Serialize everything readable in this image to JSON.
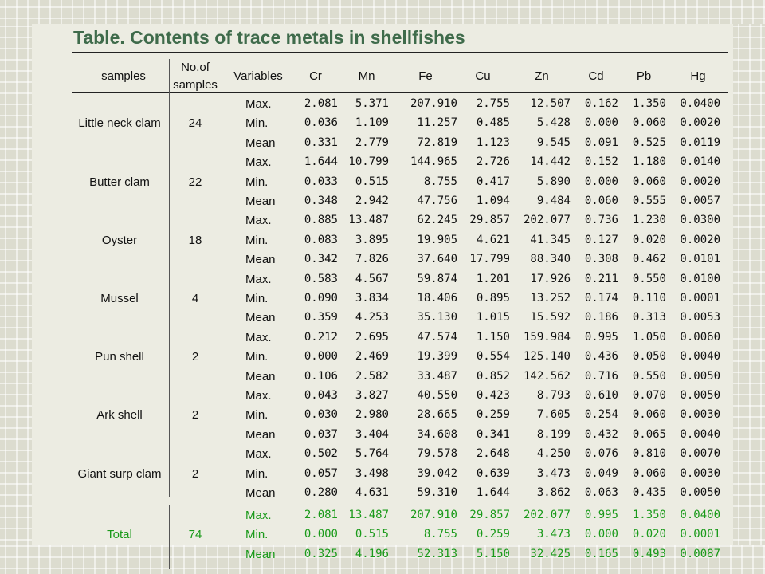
{
  "title": "Table. Contents of trace metals in shellfishes",
  "headers": {
    "samples": "samples",
    "no_of_samples_line1": "No.of",
    "no_of_samples_line2": "samples",
    "variables": "Variables",
    "metals": [
      "Cr",
      "Mn",
      "Fe",
      "Cu",
      "Zn",
      "Cd",
      "Pb",
      "Hg"
    ]
  },
  "groups": [
    {
      "name": "Little neck clam",
      "n": "24",
      "rows": [
        {
          "var": "Max.",
          "vals": [
            "2.081",
            "5.371",
            "207.910",
            "2.755",
            "12.507",
            "0.162",
            "1.350",
            "0.0400"
          ]
        },
        {
          "var": "Min.",
          "vals": [
            "0.036",
            "1.109",
            "11.257",
            "0.485",
            "5.428",
            "0.000",
            "0.060",
            "0.0020"
          ]
        },
        {
          "var": "Mean",
          "vals": [
            "0.331",
            "2.779",
            "72.819",
            "1.123",
            "9.545",
            "0.091",
            "0.525",
            "0.0119"
          ]
        }
      ]
    },
    {
      "name": "Butter clam",
      "n": "22",
      "rows": [
        {
          "var": "Max.",
          "vals": [
            "1.644",
            "10.799",
            "144.965",
            "2.726",
            "14.442",
            "0.152",
            "1.180",
            "0.0140"
          ]
        },
        {
          "var": "Min.",
          "vals": [
            "0.033",
            "0.515",
            "8.755",
            "0.417",
            "5.890",
            "0.000",
            "0.060",
            "0.0020"
          ]
        },
        {
          "var": "Mean",
          "vals": [
            "0.348",
            "2.942",
            "47.756",
            "1.094",
            "9.484",
            "0.060",
            "0.555",
            "0.0057"
          ]
        }
      ]
    },
    {
      "name": "Oyster",
      "n": "18",
      "rows": [
        {
          "var": "Max.",
          "vals": [
            "0.885",
            "13.487",
            "62.245",
            "29.857",
            "202.077",
            "0.736",
            "1.230",
            "0.0300"
          ]
        },
        {
          "var": "Min.",
          "vals": [
            "0.083",
            "3.895",
            "19.905",
            "4.621",
            "41.345",
            "0.127",
            "0.020",
            "0.0020"
          ]
        },
        {
          "var": "Mean",
          "vals": [
            "0.342",
            "7.826",
            "37.640",
            "17.799",
            "88.340",
            "0.308",
            "0.462",
            "0.0101"
          ]
        }
      ]
    },
    {
      "name": "Mussel",
      "n": "4",
      "rows": [
        {
          "var": "Max.",
          "vals": [
            "0.583",
            "4.567",
            "59.874",
            "1.201",
            "17.926",
            "0.211",
            "0.550",
            "0.0100"
          ]
        },
        {
          "var": "Min.",
          "vals": [
            "0.090",
            "3.834",
            "18.406",
            "0.895",
            "13.252",
            "0.174",
            "0.110",
            "0.0001"
          ]
        },
        {
          "var": "Mean",
          "vals": [
            "0.359",
            "4.253",
            "35.130",
            "1.015",
            "15.592",
            "0.186",
            "0.313",
            "0.0053"
          ]
        }
      ]
    },
    {
      "name": "Pun shell",
      "n": "2",
      "rows": [
        {
          "var": "Max.",
          "vals": [
            "0.212",
            "2.695",
            "47.574",
            "1.150",
            "159.984",
            "0.995",
            "1.050",
            "0.0060"
          ]
        },
        {
          "var": "Min.",
          "vals": [
            "0.000",
            "2.469",
            "19.399",
            "0.554",
            "125.140",
            "0.436",
            "0.050",
            "0.0040"
          ]
        },
        {
          "var": "Mean",
          "vals": [
            "0.106",
            "2.582",
            "33.487",
            "0.852",
            "142.562",
            "0.716",
            "0.550",
            "0.0050"
          ]
        }
      ]
    },
    {
      "name": "Ark shell",
      "n": "2",
      "rows": [
        {
          "var": "Max.",
          "vals": [
            "0.043",
            "3.827",
            "40.550",
            "0.423",
            "8.793",
            "0.610",
            "0.070",
            "0.0050"
          ]
        },
        {
          "var": "Min.",
          "vals": [
            "0.030",
            "2.980",
            "28.665",
            "0.259",
            "7.605",
            "0.254",
            "0.060",
            "0.0030"
          ]
        },
        {
          "var": "Mean",
          "vals": [
            "0.037",
            "3.404",
            "34.608",
            "0.341",
            "8.199",
            "0.432",
            "0.065",
            "0.0040"
          ]
        }
      ]
    },
    {
      "name": "Giant surp clam",
      "n": "2",
      "rows": [
        {
          "var": "Max.",
          "vals": [
            "0.502",
            "5.764",
            "79.578",
            "2.648",
            "4.250",
            "0.076",
            "0.810",
            "0.0070"
          ]
        },
        {
          "var": "Min.",
          "vals": [
            "0.057",
            "3.498",
            "39.042",
            "0.639",
            "3.473",
            "0.049",
            "0.060",
            "0.0030"
          ]
        },
        {
          "var": "Mean",
          "vals": [
            "0.280",
            "4.631",
            "59.310",
            "1.644",
            "3.862",
            "0.063",
            "0.435",
            "0.0050"
          ]
        }
      ]
    }
  ],
  "total": {
    "name": "Total",
    "n": "74",
    "rows": [
      {
        "var": "Max.",
        "vals": [
          "2.081",
          "13.487",
          "207.910",
          "29.857",
          "202.077",
          "0.995",
          "1.350",
          "0.0400"
        ]
      },
      {
        "var": "Min.",
        "vals": [
          "0.000",
          "0.515",
          "8.755",
          "0.259",
          "3.473",
          "0.000",
          "0.020",
          "0.0001"
        ]
      },
      {
        "var": "Mean",
        "vals": [
          "0.325",
          "4.196",
          "52.313",
          "5.150",
          "32.425",
          "0.165",
          "0.493",
          "0.0087"
        ]
      }
    ]
  },
  "colors": {
    "title": "#3f6b4b",
    "total_rows": "#1a9a1a",
    "text": "#111111"
  }
}
